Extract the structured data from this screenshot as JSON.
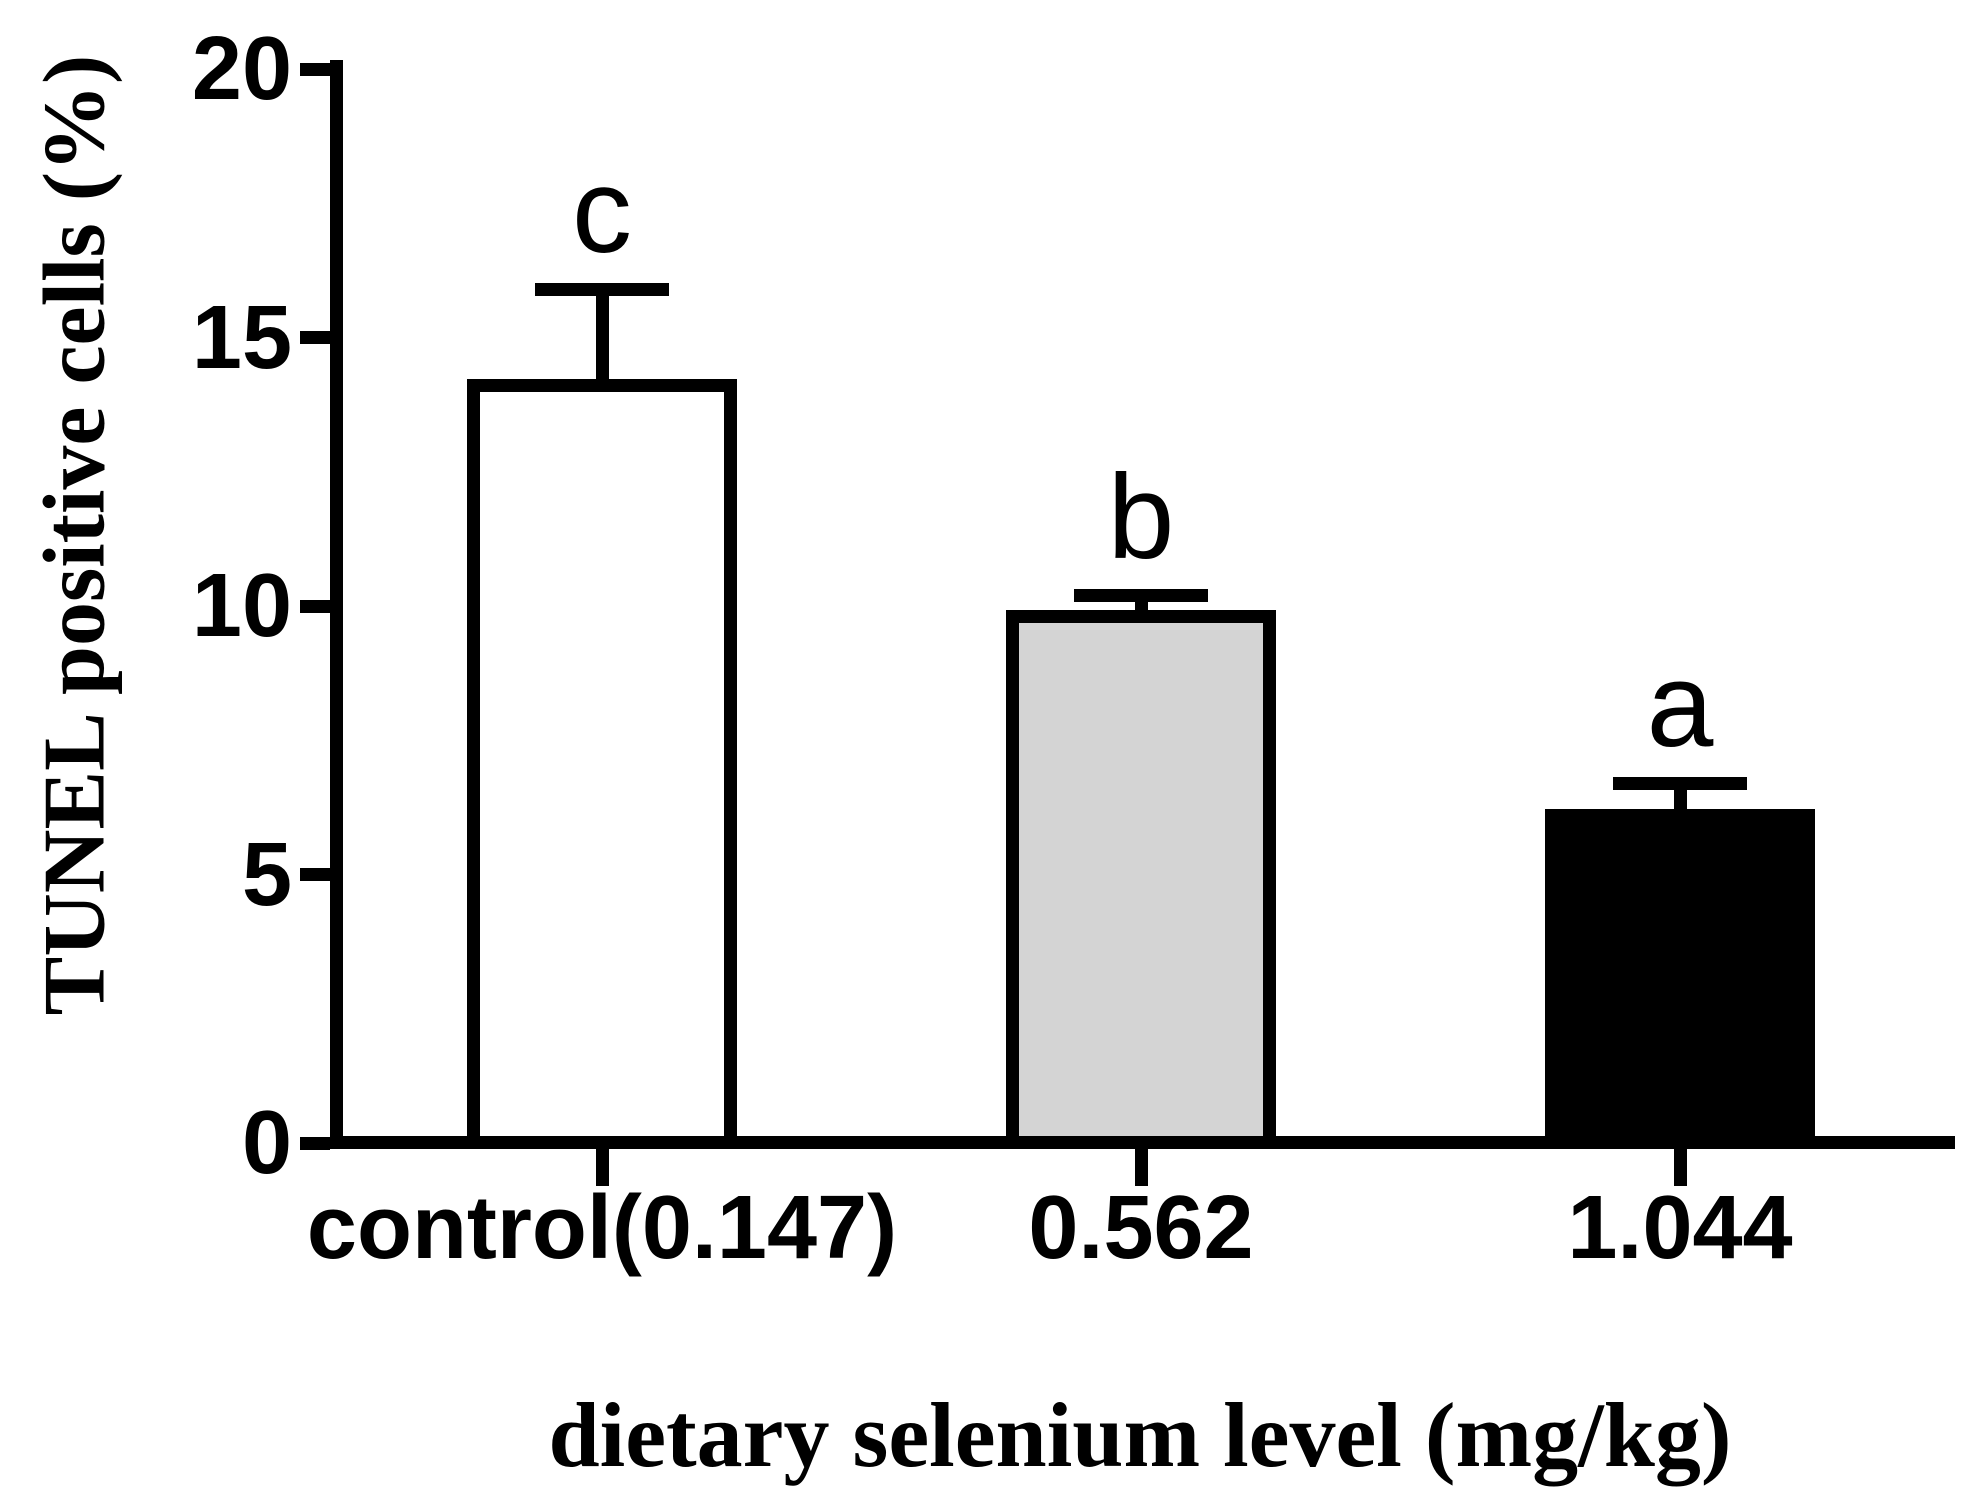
{
  "chart_data": {
    "type": "bar",
    "title": "",
    "xlabel": "dietary selenium level (mg/kg)",
    "ylabel": "TUNEL positive cells (%)",
    "categories": [
      "control(0.147)",
      "0.562",
      "1.044"
    ],
    "values": [
      14.1,
      9.8,
      6.1
    ],
    "error_tops": [
      15.9,
      10.2,
      6.7
    ],
    "sig_letters": [
      "c",
      "b",
      "a"
    ],
    "bar_fill_colors": [
      "#ffffff",
      "#d4d4d4",
      "#000000"
    ],
    "axis_color": "#000000",
    "ylim": [
      0,
      20
    ],
    "yticks": [
      0,
      5,
      10,
      15,
      20
    ],
    "grid": false,
    "legend": "none",
    "error_bar_style": "upper SEM with cap",
    "bar_outline_color": "#000000"
  }
}
